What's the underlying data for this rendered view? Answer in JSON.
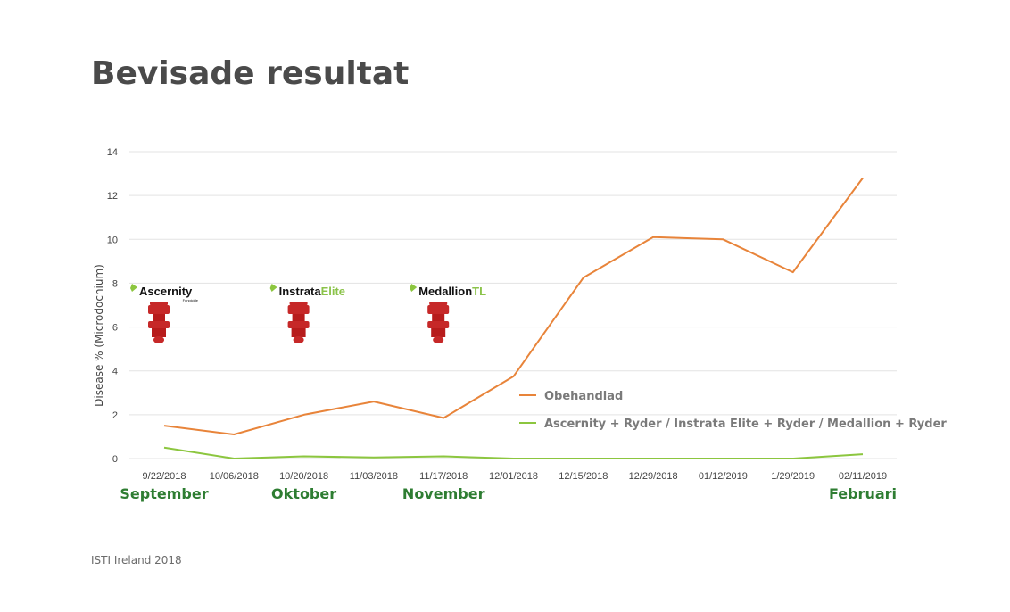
{
  "title": "Bevisade resultat",
  "source": "ISTI Ireland 2018",
  "colors": {
    "untreated": "#e8843a",
    "treated": "#8cc63f",
    "month": "#2e7d32",
    "product_red": "#c62828"
  },
  "products": [
    {
      "name": "Ascernity",
      "suffix": "",
      "sub": "Fungicide",
      "date": "9/22/2018",
      "icon": "spray-nozzle-icon"
    },
    {
      "name": "Instrata",
      "suffix": "Elite",
      "sub": "",
      "date": "10/20/2018",
      "icon": "spray-nozzle-icon"
    },
    {
      "name": "Medallion",
      "suffix": "TL",
      "sub": "",
      "date": "11/17/2018",
      "icon": "spray-nozzle-icon"
    }
  ],
  "chart_data": {
    "type": "line",
    "title": "",
    "xlabel": "",
    "ylabel": "Disease % (Microdochium)",
    "ylim": [
      0,
      14
    ],
    "yticks": [
      0,
      2,
      4,
      6,
      8,
      10,
      12,
      14
    ],
    "grid": true,
    "legend_position": "lower-right",
    "categories": [
      "9/22/2018",
      "10/06/2018",
      "10/20/2018",
      "11/03/2018",
      "11/17/2018",
      "12/01/2018",
      "12/15/2018",
      "12/29/2018",
      "01/12/2019",
      "1/29/2019",
      "02/11/2019"
    ],
    "month_labels": [
      {
        "label": "September",
        "category": "9/22/2018"
      },
      {
        "label": "Oktober",
        "category": "10/20/2018"
      },
      {
        "label": "November",
        "category": "11/17/2018"
      },
      {
        "label": "Februari",
        "category": "02/11/2019"
      }
    ],
    "series": [
      {
        "name": "Obehandlad",
        "values": [
          1.5,
          1.1,
          2.0,
          2.6,
          1.85,
          3.75,
          8.25,
          10.1,
          10.0,
          8.5,
          12.8
        ]
      },
      {
        "name": "Ascernity + Ryder / Instrata Elite + Ryder / Medallion + Ryder",
        "values": [
          0.5,
          0.0,
          0.1,
          0.05,
          0.1,
          0.0,
          0.0,
          0.0,
          0.0,
          0.0,
          0.2
        ]
      }
    ]
  }
}
